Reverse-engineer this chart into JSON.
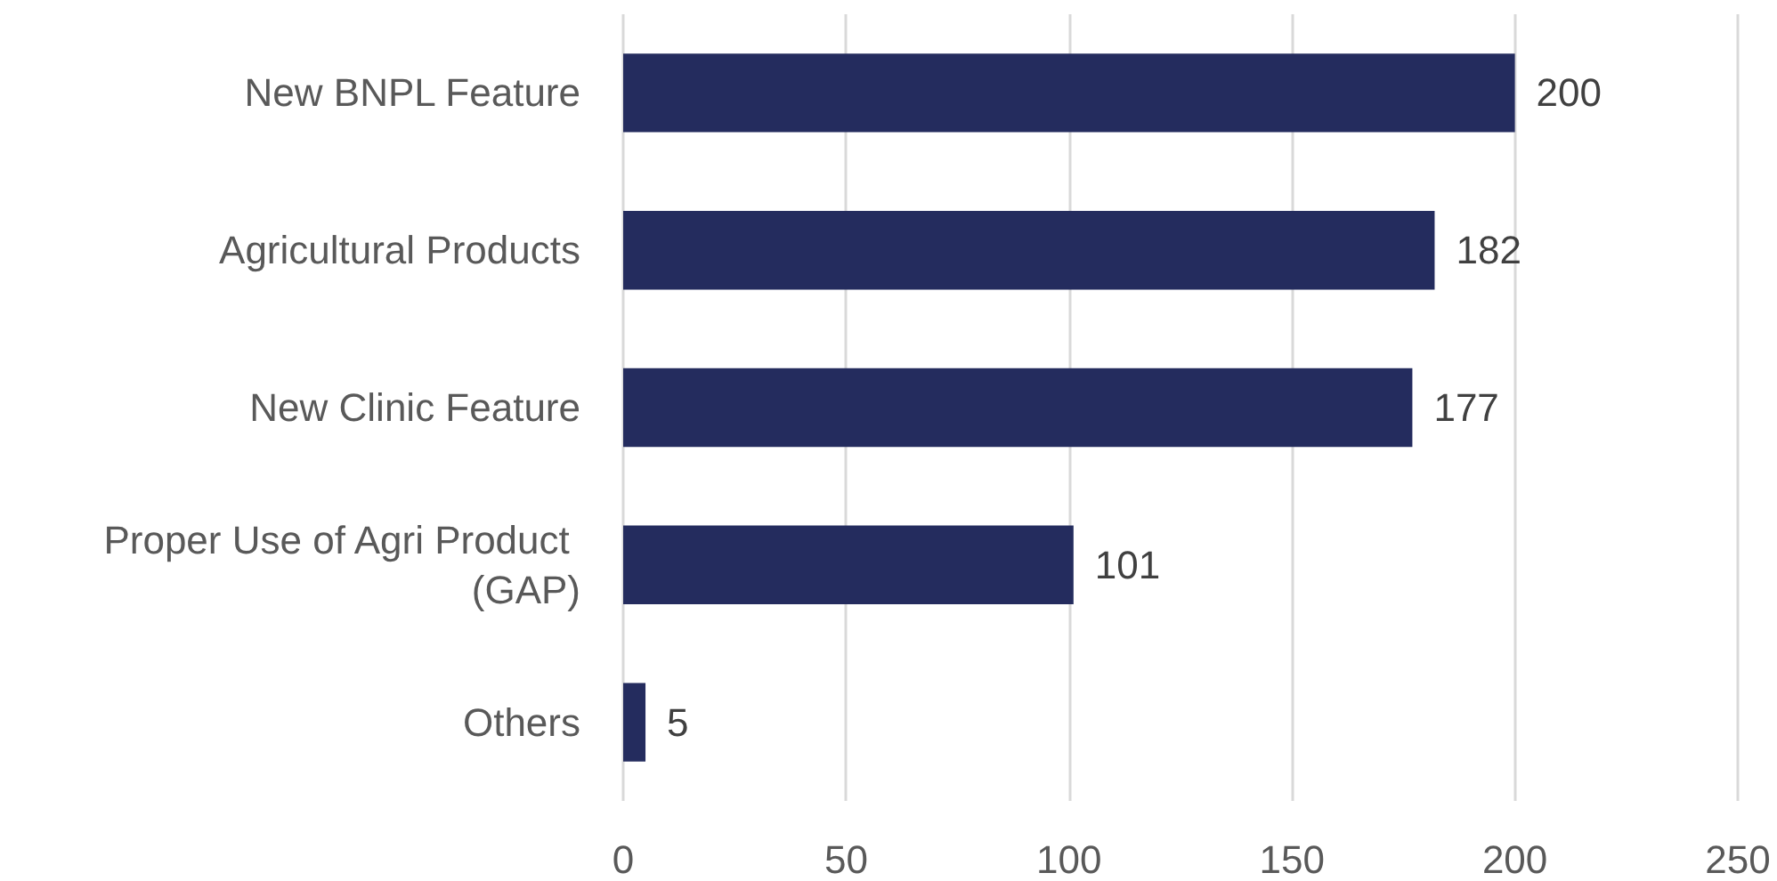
{
  "chart_data": {
    "type": "bar",
    "orientation": "horizontal",
    "categories": [
      "New BNPL Feature",
      "Agricultural Products",
      "New Clinic Feature",
      "Proper Use of Agri Product (GAP)",
      "Others"
    ],
    "values": [
      200,
      182,
      177,
      101,
      5
    ],
    "color": "#242c5e",
    "xlim": [
      0,
      250
    ],
    "xticks": [
      0,
      50,
      100,
      150,
      200,
      250
    ],
    "grid": "x",
    "data_labels": true
  }
}
